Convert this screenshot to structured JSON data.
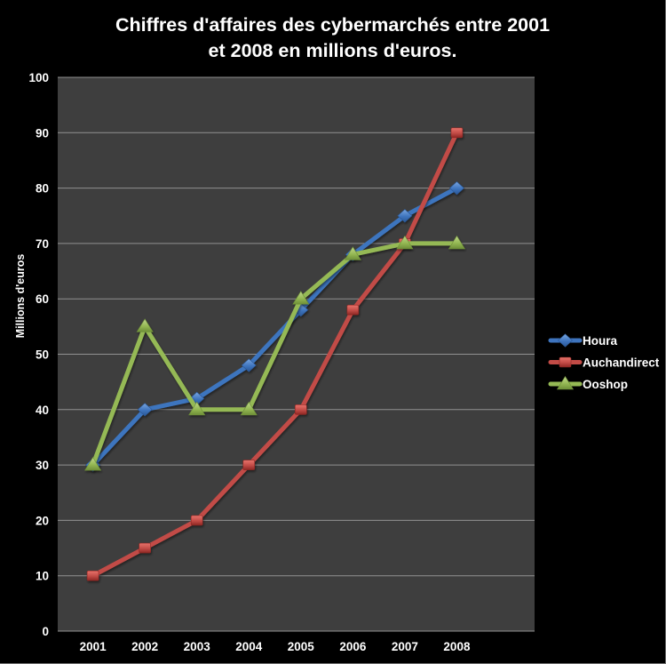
{
  "chart_data": {
    "type": "line",
    "title": "Chiffres d'affaires des cybermarchés entre 2001 et 2008 en millions d'euros.",
    "title_lines": [
      "Chiffres d'affaires des cybermarchés entre 2001",
      "et 2008 en millions d'euros."
    ],
    "xlabel": "",
    "ylabel": "Millions d'euros",
    "ylim": [
      0,
      100
    ],
    "y_ticks": [
      0,
      10,
      20,
      30,
      40,
      50,
      60,
      70,
      80,
      90,
      100
    ],
    "categories": [
      "2001",
      "2002",
      "2003",
      "2004",
      "2005",
      "2006",
      "2007",
      "2008"
    ],
    "series": [
      {
        "name": "Houra",
        "marker": "diamond",
        "color": "#3e74be",
        "marker_light": "#7ba7e0",
        "marker_dark": "#2a5795",
        "values": [
          30,
          40,
          42,
          48,
          58,
          68,
          75,
          80
        ]
      },
      {
        "name": "Auchandirect",
        "marker": "square",
        "color": "#c24b46",
        "marker_light": "#e8736b",
        "marker_dark": "#8e2723",
        "values": [
          10,
          15,
          20,
          30,
          40,
          58,
          70,
          90
        ]
      },
      {
        "name": "Ooshop",
        "marker": "triangle",
        "color": "#95b954",
        "marker_light": "#c0d68e",
        "marker_dark": "#6e8f38",
        "values": [
          30,
          55,
          40,
          40,
          60,
          68,
          70,
          70
        ]
      }
    ],
    "grid": true,
    "legend_position": "right",
    "colors": {
      "background": "#000000",
      "plot_background": "#3e3e3e",
      "gridline": "#919191",
      "text": "#ffffff"
    }
  }
}
